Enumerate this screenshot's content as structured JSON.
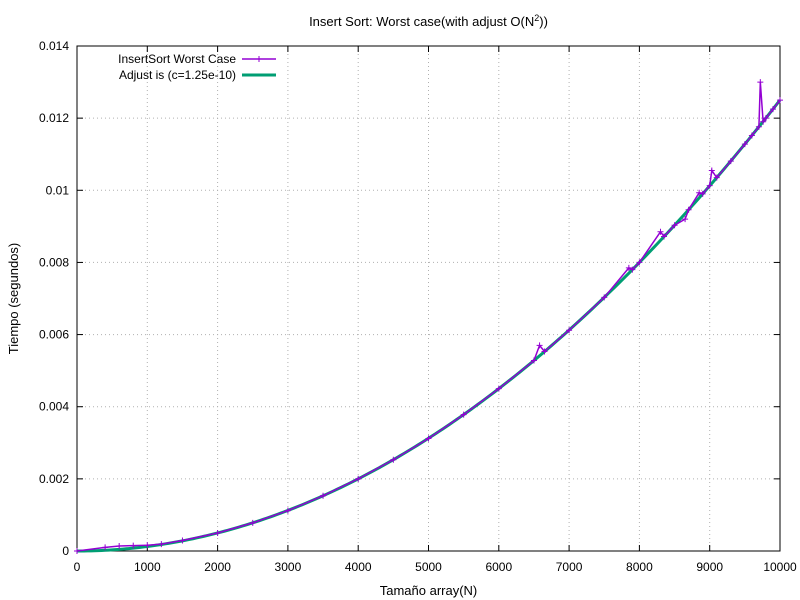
{
  "chart_data": {
    "type": "line",
    "title": "Insert Sort: Worst case(with adjust O(N",
    "title_superscript": "2",
    "title_suffix": "))",
    "xlabel": "Tamaño array(N)",
    "ylabel": "Tiempo (segundos)",
    "xlim": [
      0,
      10000
    ],
    "ylim": [
      0,
      0.014
    ],
    "x_ticks": [
      0,
      1000,
      2000,
      3000,
      4000,
      5000,
      6000,
      7000,
      8000,
      9000,
      10000
    ],
    "x_tick_labels": [
      "0",
      "1000",
      "2000",
      "3000",
      "4000",
      "5000",
      "6000",
      "7000",
      "8000",
      "9000",
      "10000"
    ],
    "y_ticks": [
      0,
      0.002,
      0.004,
      0.006,
      0.008,
      0.01,
      0.012,
      0.014
    ],
    "y_tick_labels": [
      "0",
      "0.002",
      "0.004",
      "0.006",
      "0.008",
      "0.01",
      "0.012",
      "0.014"
    ],
    "grid": true,
    "legend_position": "top-left",
    "series": [
      {
        "name": "InsertSort Worst Case",
        "color": "#9400d3",
        "marker": "plus",
        "x": [
          0,
          400,
          600,
          800,
          1000,
          1200,
          1500,
          2000,
          2500,
          3000,
          3500,
          4000,
          4500,
          5000,
          5500,
          6000,
          6500,
          6580,
          6650,
          7000,
          7500,
          7850,
          7900,
          8000,
          8300,
          8350,
          8500,
          8650,
          8700,
          8850,
          8900,
          9000,
          9030,
          9100,
          9300,
          9500,
          9600,
          9700,
          9720,
          9760,
          9800,
          9900,
          10000
        ],
        "y": [
          0.0,
          0.0001,
          0.00014,
          0.00015,
          0.00016,
          0.00019,
          0.00029,
          0.0005,
          0.00078,
          0.00112,
          0.00153,
          0.002,
          0.00253,
          0.00312,
          0.00378,
          0.0045,
          0.00528,
          0.0057,
          0.00553,
          0.00612,
          0.00703,
          0.00785,
          0.0078,
          0.008,
          0.00885,
          0.00872,
          0.00903,
          0.0092,
          0.00946,
          0.00993,
          0.0099,
          0.01013,
          0.01055,
          0.01035,
          0.01081,
          0.01128,
          0.01152,
          0.01176,
          0.013,
          0.0119,
          0.012,
          0.01225,
          0.0125
        ]
      },
      {
        "name": "Adjust is (c=1.25e-10)",
        "color": "#009e73",
        "function": "c*N^2",
        "c": 1.25e-10
      }
    ]
  }
}
